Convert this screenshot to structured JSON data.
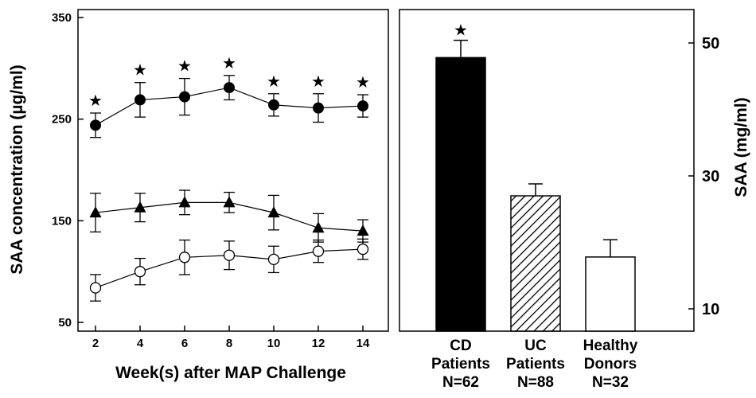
{
  "chart_data": [
    {
      "type": "line",
      "xlabel": "Week(s) after MAP Challenge",
      "ylabel": "SAA concentration (µg/ml)",
      "x_ticks": [
        "2",
        "4",
        "6",
        "8",
        "10",
        "12",
        "14"
      ],
      "y_ticks": [
        "50",
        "150",
        "250",
        "350"
      ],
      "x": [
        2,
        4,
        6,
        8,
        10,
        12,
        14
      ],
      "xlim": [
        1,
        15
      ],
      "ylim": [
        40,
        355
      ],
      "series": [
        {
          "marker": "filled-circle",
          "values": [
            244,
            269,
            272,
            281,
            264,
            261,
            263
          ],
          "errors": [
            12,
            17,
            18,
            12,
            11,
            14,
            11
          ],
          "significance_marker": "★"
        },
        {
          "marker": "filled-triangle",
          "values": [
            158,
            163,
            168,
            168,
            158,
            143,
            140
          ],
          "errors": [
            19,
            14,
            12,
            10,
            17,
            14,
            11
          ]
        },
        {
          "marker": "open-circle",
          "values": [
            84,
            100,
            114,
            116,
            112,
            120,
            122
          ],
          "errors": [
            13,
            13,
            17,
            14,
            13,
            11,
            10
          ]
        }
      ]
    },
    {
      "type": "bar",
      "ylabel": "SAA (mg/ml)",
      "y_ticks": [
        "10",
        "30",
        "50"
      ],
      "ylim": [
        7,
        55
      ],
      "categories": [
        {
          "line1": "CD",
          "line2": "Patients",
          "line3": "N=62"
        },
        {
          "line1": "UC",
          "line2": "Patients",
          "line3": "N=88"
        },
        {
          "line1": "Healthy",
          "line2": "Donors",
          "line3": "N=32"
        }
      ],
      "values": [
        47.8,
        27.0,
        17.8
      ],
      "errors": [
        2.6,
        1.8,
        2.6
      ],
      "fills": [
        "solid-black",
        "diagonal-hatch",
        "white"
      ],
      "significance": [
        "★",
        "",
        ""
      ]
    }
  ]
}
